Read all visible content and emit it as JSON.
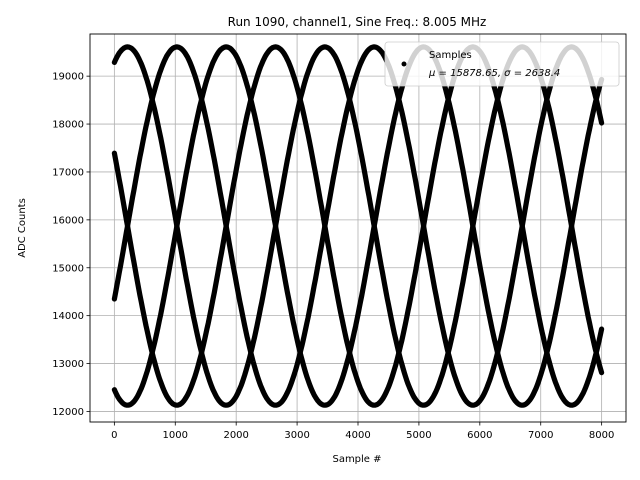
{
  "chart_data": {
    "type": "scatter",
    "title": "Run 1090, channel1, Sine Freq.: 8.005 MHz",
    "xlabel": "Sample #",
    "ylabel": "ADC Counts",
    "xlim": [
      -400,
      8400
    ],
    "ylim": [
      11780,
      19880
    ],
    "xticks": [
      0,
      1000,
      2000,
      3000,
      4000,
      5000,
      6000,
      7000,
      8000
    ],
    "yticks": [
      12000,
      13000,
      14000,
      15000,
      16000,
      17000,
      18000,
      19000
    ],
    "grid": true,
    "legend": {
      "placement": "top-right",
      "series_name": "Samples",
      "stats_text": "μ = 15878.65, σ = 2638.4"
    },
    "series": [
      {
        "name": "Samples",
        "color": "#000000",
        "model": {
          "mean": 15870,
          "amplitude": 3740,
          "period_samples": 3240,
          "phase_offsets_deg": [
            -24,
            66,
            156,
            246
          ],
          "x_start": 0,
          "x_end": 8000
        }
      }
    ]
  }
}
